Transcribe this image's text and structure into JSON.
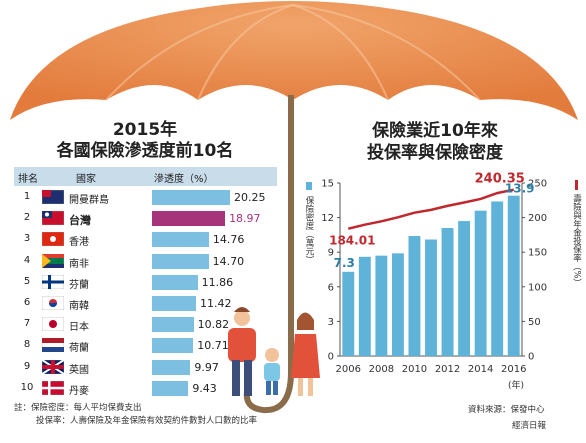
{
  "left": {
    "title_line1": "2015年",
    "title_line2": "各國保險滲透度前10名",
    "header": {
      "rank": "排名",
      "country": "國家",
      "metric": "滲透度（%）"
    },
    "rows": [
      {
        "rank": "1",
        "country": "開曼群島",
        "value": 20.25,
        "value_label": "20.25"
      },
      {
        "rank": "2",
        "country": "台灣",
        "value": 18.97,
        "value_label": "18.97"
      },
      {
        "rank": "3",
        "country": "香港",
        "value": 14.76,
        "value_label": "14.76"
      },
      {
        "rank": "4",
        "country": "南非",
        "value": 14.7,
        "value_label": "14.70"
      },
      {
        "rank": "5",
        "country": "芬蘭",
        "value": 11.86,
        "value_label": "11.86"
      },
      {
        "rank": "6",
        "country": "南韓",
        "value": 11.42,
        "value_label": "11.42"
      },
      {
        "rank": "7",
        "country": "日本",
        "value": 10.82,
        "value_label": "10.82"
      },
      {
        "rank": "8",
        "country": "荷蘭",
        "value": 10.71,
        "value_label": "10.71"
      },
      {
        "rank": "9",
        "country": "英國",
        "value": 9.97,
        "value_label": "9.97"
      },
      {
        "rank": "10",
        "country": "丹麥",
        "value": 9.43,
        "value_label": "9.43"
      }
    ],
    "highlight_color": "#a6347a",
    "bar_color": "#7cbfe0"
  },
  "right": {
    "title_line1": "保險業近10年來",
    "title_line2": "投保率與保險密度",
    "legend_bar": "保險密度（萬元）",
    "legend_line": "壽險與年金投保率（%）",
    "x_unit": "(年)"
  },
  "chart_data": [
    {
      "type": "bar",
      "title": "各國保險滲透度前10名",
      "categories": [
        "開曼群島",
        "台灣",
        "香港",
        "南非",
        "芬蘭",
        "南韓",
        "日本",
        "荷蘭",
        "英國",
        "丹麥"
      ],
      "values": [
        20.25,
        18.97,
        14.76,
        14.7,
        11.86,
        11.42,
        10.82,
        10.71,
        9.97,
        9.43
      ],
      "xlabel": "滲透度（%）",
      "orientation": "horizontal"
    },
    {
      "type": "bar+line",
      "title": "投保率與保險密度",
      "x": [
        2006,
        2007,
        2008,
        2009,
        2010,
        2011,
        2012,
        2013,
        2014,
        2015,
        2016
      ],
      "x_ticks": [
        "2006",
        "2008",
        "2010",
        "2012",
        "2014",
        "2016"
      ],
      "series": [
        {
          "name": "保險密度（萬元）",
          "kind": "bar",
          "axis": "left",
          "values": [
            7.3,
            8.6,
            8.7,
            8.9,
            10.4,
            10.1,
            11.1,
            11.7,
            12.6,
            13.4,
            13.9
          ],
          "labels": {
            "2006": "7.3",
            "2016": "13.9"
          },
          "color": "#5fb3d9"
        },
        {
          "name": "壽險與年金投保率（%）",
          "kind": "line",
          "axis": "right",
          "values": [
            184.01,
            189.8,
            194.6,
            200.4,
            207.1,
            211.2,
            216.9,
            221.8,
            227.0,
            235.4,
            240.35
          ],
          "labels": {
            "2006": "184.01",
            "2016": "240.35"
          },
          "color": "#c0282d"
        }
      ],
      "ylim_left": [
        0,
        15
      ],
      "yticks_left": [
        "0",
        "3",
        "6",
        "9",
        "12",
        "15"
      ],
      "ylim_right": [
        0,
        250
      ],
      "yticks_right": [
        "0",
        "50",
        "100",
        "150",
        "200",
        "250"
      ]
    }
  ],
  "footer": {
    "note1": "註：保險密度：每人平均保費支出",
    "note2": "投保率：人壽保險及年金保險有效契約件數對人口數的比率",
    "source": "資料來源：保發中心",
    "press": "經濟日報"
  }
}
